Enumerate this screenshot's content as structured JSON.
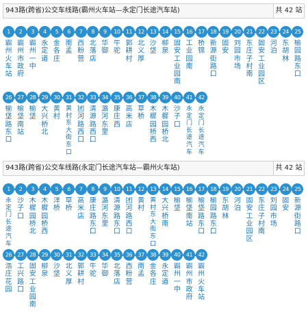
{
  "routes": [
    {
      "title": "943路(跨省)公交车线路(霸州火车站—永定门长途汽车站)",
      "count": "共 42 站",
      "stops": [
        "霸州火车站",
        "霸州市政府",
        "霸州一中",
        "永定道",
        "金各庄",
        "南孟",
        "西粉营",
        "北落店",
        "华御",
        "牛驼",
        "郭耕村",
        "北义厚",
        "沙垡",
        "柳泉",
        "固安工业园南",
        "工业园南",
        "桥锦",
        "新源街路口",
        "固安",
        "刘园市场",
        "东庄子村南",
        "固安工业园区",
        "河泊",
        "东胡林",
        "榆园路东口",
        "榆垡路东口",
        "榆垡南站",
        "榆垡",
        "大兴桥北",
        "黄村",
        "黄村东大街东口",
        "团河路西口",
        "清源路西口",
        "潞河东里",
        "康庄西",
        "高米店",
        "草桥",
        "木樨园桥西",
        "木樨园桥北",
        "沙子口",
        "永定门长途汽车站",
        "永定门长途汽车站"
      ]
    },
    {
      "title": "943路(跨省)公交车线路(永定门长途汽车站—霸州火车站)",
      "count": "共 42 站",
      "stops": [
        "永定门长途汽车站",
        "沙子口",
        "木樨园桥北",
        "木樨园桥西",
        "洋桥",
        "草桥",
        "高米店",
        "康庄路东口",
        "潞河东里",
        "清源路东口",
        "团河路西口",
        "黄村",
        "黄村东大街东口",
        "大兴桥南",
        "榆垡",
        "榆垡南站",
        "榆垡路东口",
        "榆园路东口",
        "东胡林",
        "河泊",
        "固安工业园区",
        "东庄子村南",
        "刘园市场",
        "固安",
        "新源街路口",
        "浩庄花园",
        "工兴路口",
        "固安工业园南",
        "柳泉",
        "沙垡",
        "北义厚",
        "郭耕村",
        "牛驼",
        "华御",
        "北落店",
        "西粉营",
        "南孟",
        "金各庄",
        "永定道",
        "霸州一中",
        "霸州市政府",
        "霸州火车站"
      ]
    }
  ],
  "colors": {
    "accent": "#2a90cf",
    "stop_text": "#1f77b8",
    "header_bg": "#f7f7f7"
  }
}
